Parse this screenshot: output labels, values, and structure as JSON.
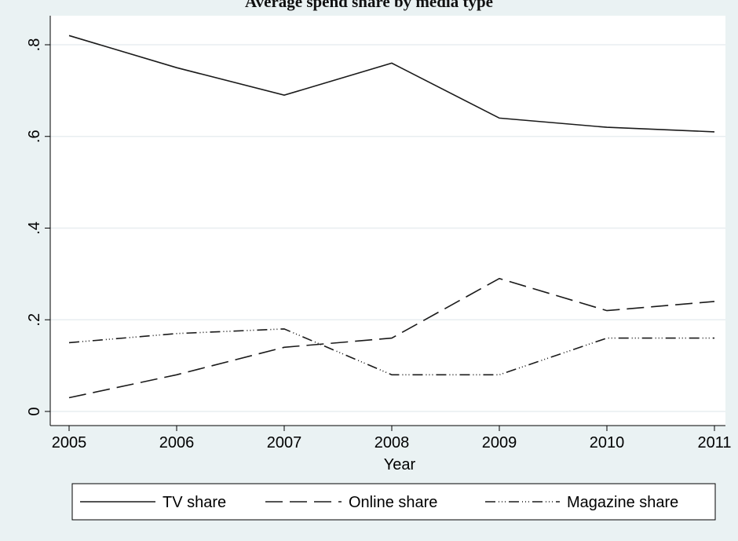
{
  "chart_data": {
    "type": "line",
    "title": "Average spend share by media type",
    "xlabel": "Year",
    "ylabel": "",
    "x": [
      2005,
      2006,
      2007,
      2008,
      2009,
      2010,
      2011
    ],
    "xlim": [
      2005,
      2011
    ],
    "ylim": [
      0,
      0.8
    ],
    "x_ticks": [
      "2005",
      "2006",
      "2007",
      "2008",
      "2009",
      "2010",
      "2011"
    ],
    "y_ticks": [
      {
        "value": 0,
        "label": "0"
      },
      {
        "value": 0.2,
        "label": ".2"
      },
      {
        "value": 0.4,
        "label": ".4"
      },
      {
        "value": 0.6,
        "label": ".6"
      },
      {
        "value": 0.8,
        "label": ".8"
      }
    ],
    "grid": true,
    "legend_position": "bottom",
    "series": [
      {
        "name": "TV share",
        "style": "solid",
        "values": [
          0.82,
          0.75,
          0.69,
          0.76,
          0.64,
          0.62,
          0.61
        ]
      },
      {
        "name": "Online share",
        "style": "long-dash",
        "values": [
          0.03,
          0.08,
          0.14,
          0.16,
          0.29,
          0.22,
          0.24
        ]
      },
      {
        "name": "Magazine share",
        "style": "dash-dot",
        "values": [
          0.15,
          0.17,
          0.18,
          0.08,
          0.08,
          0.16,
          0.16
        ]
      }
    ],
    "colors": {
      "background": "#eaf2f3",
      "plot": "#ffffff",
      "line": "#1a1a1a",
      "grid": "#e8eef0"
    }
  }
}
